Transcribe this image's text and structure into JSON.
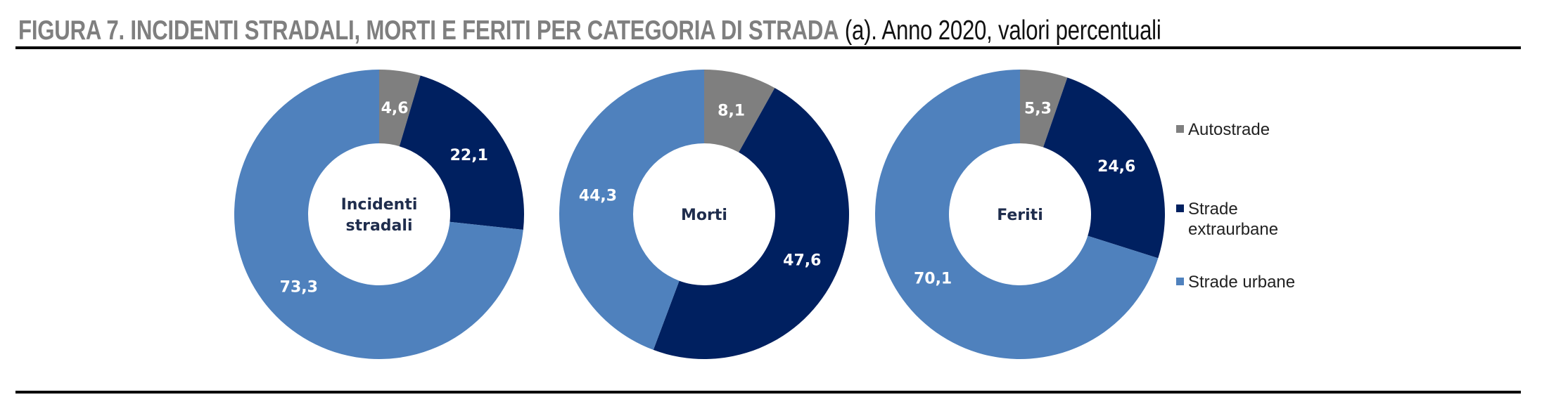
{
  "title": {
    "bold": "FIGURA 7. INCIDENTI STRADALI, MORTI E FERITI PER CATEGORIA DI STRADA",
    "rest": " (a). Anno 2020, valori percentuali"
  },
  "chart_data": {
    "type": "pie",
    "variant": "donut",
    "categories": [
      "Autostrade",
      "Strade extraurbane",
      "Strade urbane"
    ],
    "colors": [
      "#7f7f7f",
      "#002060",
      "#4f81bd"
    ],
    "charts": [
      {
        "center_label": "Incidenti stradali",
        "values": [
          4.6,
          22.1,
          73.3
        ],
        "labels": [
          "4,6",
          "22,1",
          "73,3"
        ]
      },
      {
        "center_label": "Morti",
        "values": [
          8.1,
          47.6,
          44.3
        ],
        "labels": [
          "8,1",
          "47,6",
          "44,3"
        ]
      },
      {
        "center_label": "Feriti",
        "values": [
          5.3,
          24.6,
          70.1
        ],
        "labels": [
          "5,3",
          "24,6",
          "70,1"
        ]
      }
    ],
    "legend": {
      "position": "right",
      "entries": [
        "Autostrade",
        "Strade extraurbane",
        "Strade urbane"
      ],
      "entry_lines": [
        [
          "Autostrade"
        ],
        [
          "Strade",
          "extraurbane"
        ],
        [
          "Strade urbane"
        ]
      ]
    }
  }
}
